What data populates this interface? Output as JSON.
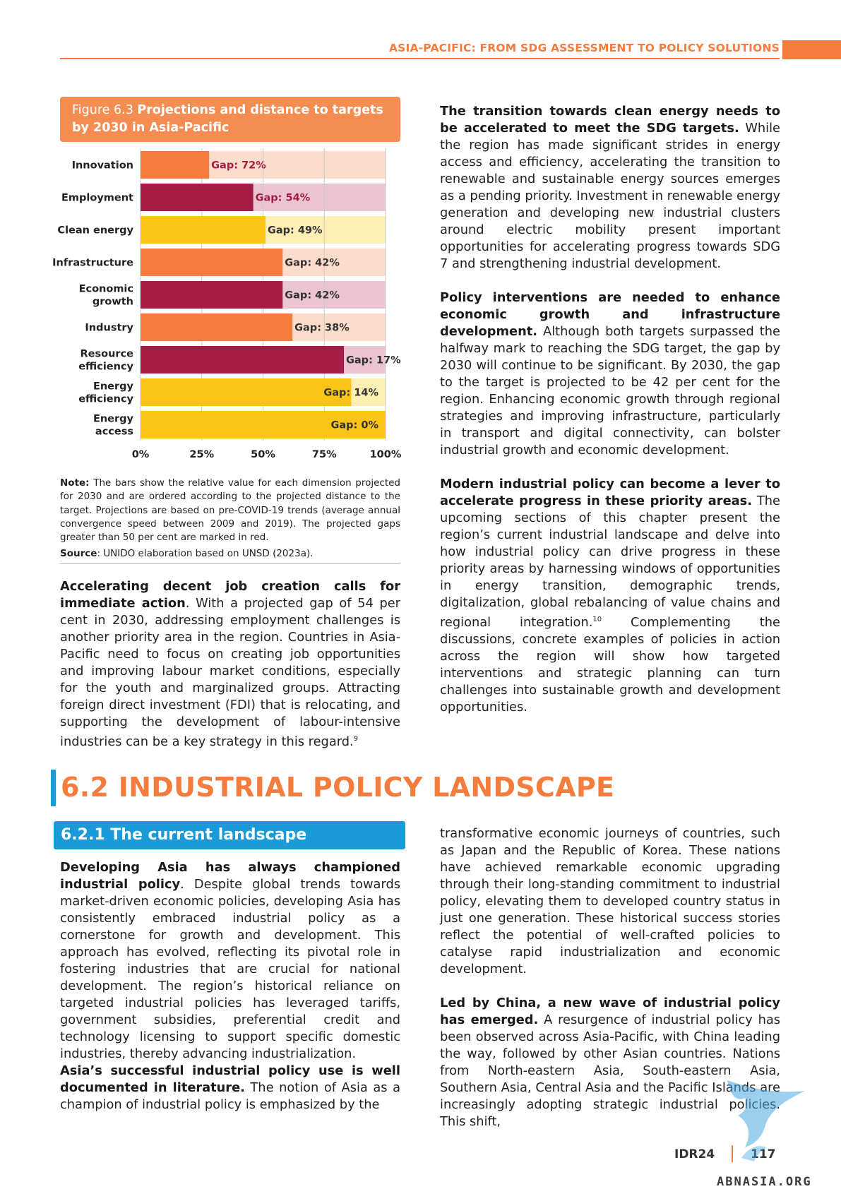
{
  "header": {
    "title": "ASIA-PACIFIC: FROM SDG ASSESSMENT TO POLICY SOLUTIONS"
  },
  "figure": {
    "label": "Figure 6.3",
    "title": "Projections and distance to targets by 2030 in Asia-Pacific"
  },
  "chart_data": {
    "type": "bar",
    "orientation": "horizontal",
    "categories": [
      "Innovation",
      "Employment",
      "Clean energy",
      "Infrastructure",
      "Economic growth",
      "Industry",
      "Resource efficiency",
      "Energy efficiency",
      "Energy access"
    ],
    "category_lines": [
      [
        "Innovation"
      ],
      [
        "Employment"
      ],
      [
        "Clean energy"
      ],
      [
        "Infrastructure"
      ],
      [
        "Economic",
        "growth"
      ],
      [
        "Industry"
      ],
      [
        "Resource",
        "efficiency"
      ],
      [
        "Energy",
        "efficiency"
      ],
      [
        "Energy",
        "access"
      ]
    ],
    "values": [
      28,
      46,
      51,
      58,
      58,
      62,
      83,
      86,
      100
    ],
    "gaps": [
      72,
      54,
      49,
      42,
      42,
      38,
      17,
      14,
      0
    ],
    "gap_labels": [
      "Gap: 72%",
      "Gap: 54%",
      "Gap: 49%",
      "Gap: 42%",
      "Gap: 42%",
      "Gap: 38%",
      "Gap: 17%",
      "Gap: 14%",
      "Gap: 0%"
    ],
    "bar_colors": [
      "#f47c3c",
      "#a51d45",
      "#f9c415",
      "#f47c3c",
      "#a51d45",
      "#f47c3c",
      "#a51d45",
      "#f9c415",
      "#f9c415"
    ],
    "track_colors": [
      "#fcdccb",
      "#eac4d0",
      "#fdefb4",
      "#fcdccb",
      "#eac4d0",
      "#fcdccb",
      "#eac4d0",
      "#fdefb4",
      "#fdefb4"
    ],
    "gap_label_colors": [
      "#a51d45",
      "#a51d45",
      "#333333",
      "#333333",
      "#333333",
      "#333333",
      "#333333",
      "#333333",
      "#333333"
    ],
    "xticks": [
      "0%",
      "25%",
      "50%",
      "75%",
      "100%"
    ],
    "xlim": [
      0,
      100
    ],
    "grid": true
  },
  "note": {
    "label": "Note:",
    "text": "The bars show the relative value for each dimension projected for 2030 and are ordered according to the projected distance to the target. Projections are based on pre-COVID-19 trends (average annual convergence speed between 2009 and 2019). The projected gaps greater than 50 per cent are marked in red."
  },
  "source": {
    "label": "Source",
    "text": ": UNIDO elaboration based on UNSD (2023a)."
  },
  "paragraphs": {
    "jobs": {
      "lead": "Accelerating decent job creation calls for immediate action",
      "text": ". With a projected gap of 54 per cent in 2030, addressing employment challenges is another priority area in the region. Countries in Asia-Pacific need to focus on creating job opportunities and improving labour market conditions, especially for the youth and marginalized groups. Attracting foreign direct investment (FDI) that is relocating, and supporting the development of labour-intensive industries can be a key strategy in this regard.",
      "ref": "9"
    },
    "energy": {
      "lead": "The transition towards clean energy needs to be accelerated to meet the SDG targets.",
      "text": " While the region has made significant strides in energy access and efficiency, accelerating the transition to renewable and sustainable energy sources emerges as a pending priority. Investment in renewable energy generation and developing new industrial clusters around electric mobility present important opportunities for accelerating progress towards SDG 7 and strengthening industrial development."
    },
    "policy": {
      "lead": "Policy interventions are needed to enhance economic growth and infrastructure development.",
      "text": " Although both targets surpassed the halfway mark to reaching the SDG target, the gap by 2030 will continue to be significant. By 2030, the gap to the target is projected to be 42 per cent for the region. Enhancing economic growth through regional strategies and improving infrastructure, particularly in transport and digital connectivity, can bolster industrial growth and economic development."
    },
    "modern": {
      "lead": "Modern industrial policy can become a lever to accelerate progress in these priority areas.",
      "text": " The upcoming sections of this chapter present the region’s current industrial landscape and delve into how industrial policy can drive progress in these priority areas by harnessing windows of opportunities in energy transition, demographic trends, digitalization, global rebalancing of value chains and regional integration.",
      "ref": "10",
      "text2": " Complementing the discussions, concrete examples of policies in action across the region will show how targeted interventions and strategic planning can turn challenges into sustainable growth and development opportunities."
    },
    "developing": {
      "lead": "Developing Asia has always championed industrial policy",
      "text": ". Despite global trends towards market-driven economic policies, developing Asia has consistently embraced industrial policy as a cornerstone for growth and development. This approach has evolved, reflecting its pivotal role in fostering industries that are crucial for national development. The region’s historical reliance on targeted industrial policies has leveraged tariffs, government subsidies, preferential credit and technology licensing to support specific domestic industries, thereby advancing industrialization."
    },
    "successful": {
      "lead": "Asia’s successful industrial policy use is well documented in literature.",
      "text": " The notion of Asia as a champion of industrial policy is emphasized by the"
    },
    "transformative": {
      "text": "transformative economic journeys of countries, such as Japan and the Republic of Korea. These nations have achieved remarkable economic upgrading through their long-standing commitment to industrial policy, elevating them to developed country status in just one generation. These historical success stories reflect the potential of well-crafted policies to catalyse rapid industrialization and economic development."
    },
    "china": {
      "lead": "Led by China, a new wave of industrial policy has emerged.",
      "text": " A resurgence of industrial policy has been observed across Asia-Pacific, with China leading the way, followed by other Asian countries. Nations from North-eastern Asia, South-eastern Asia, Southern Asia, Central Asia and the Pacific Islands are increasingly adopting strategic industrial policies. This shift,"
    }
  },
  "section": {
    "title": "6.2 INDUSTRIAL POLICY LANDSCAPE",
    "subtitle": "6.2.1 The current landscape"
  },
  "footer": {
    "label": "IDR24",
    "page": "117"
  },
  "watermark": {
    "text": "ABNASIA.ORG"
  },
  "colors": {
    "accent_orange": "#f47c3c",
    "accent_blue": "#1a9ad6",
    "crimson": "#a51d45",
    "yellow": "#f9c415"
  }
}
